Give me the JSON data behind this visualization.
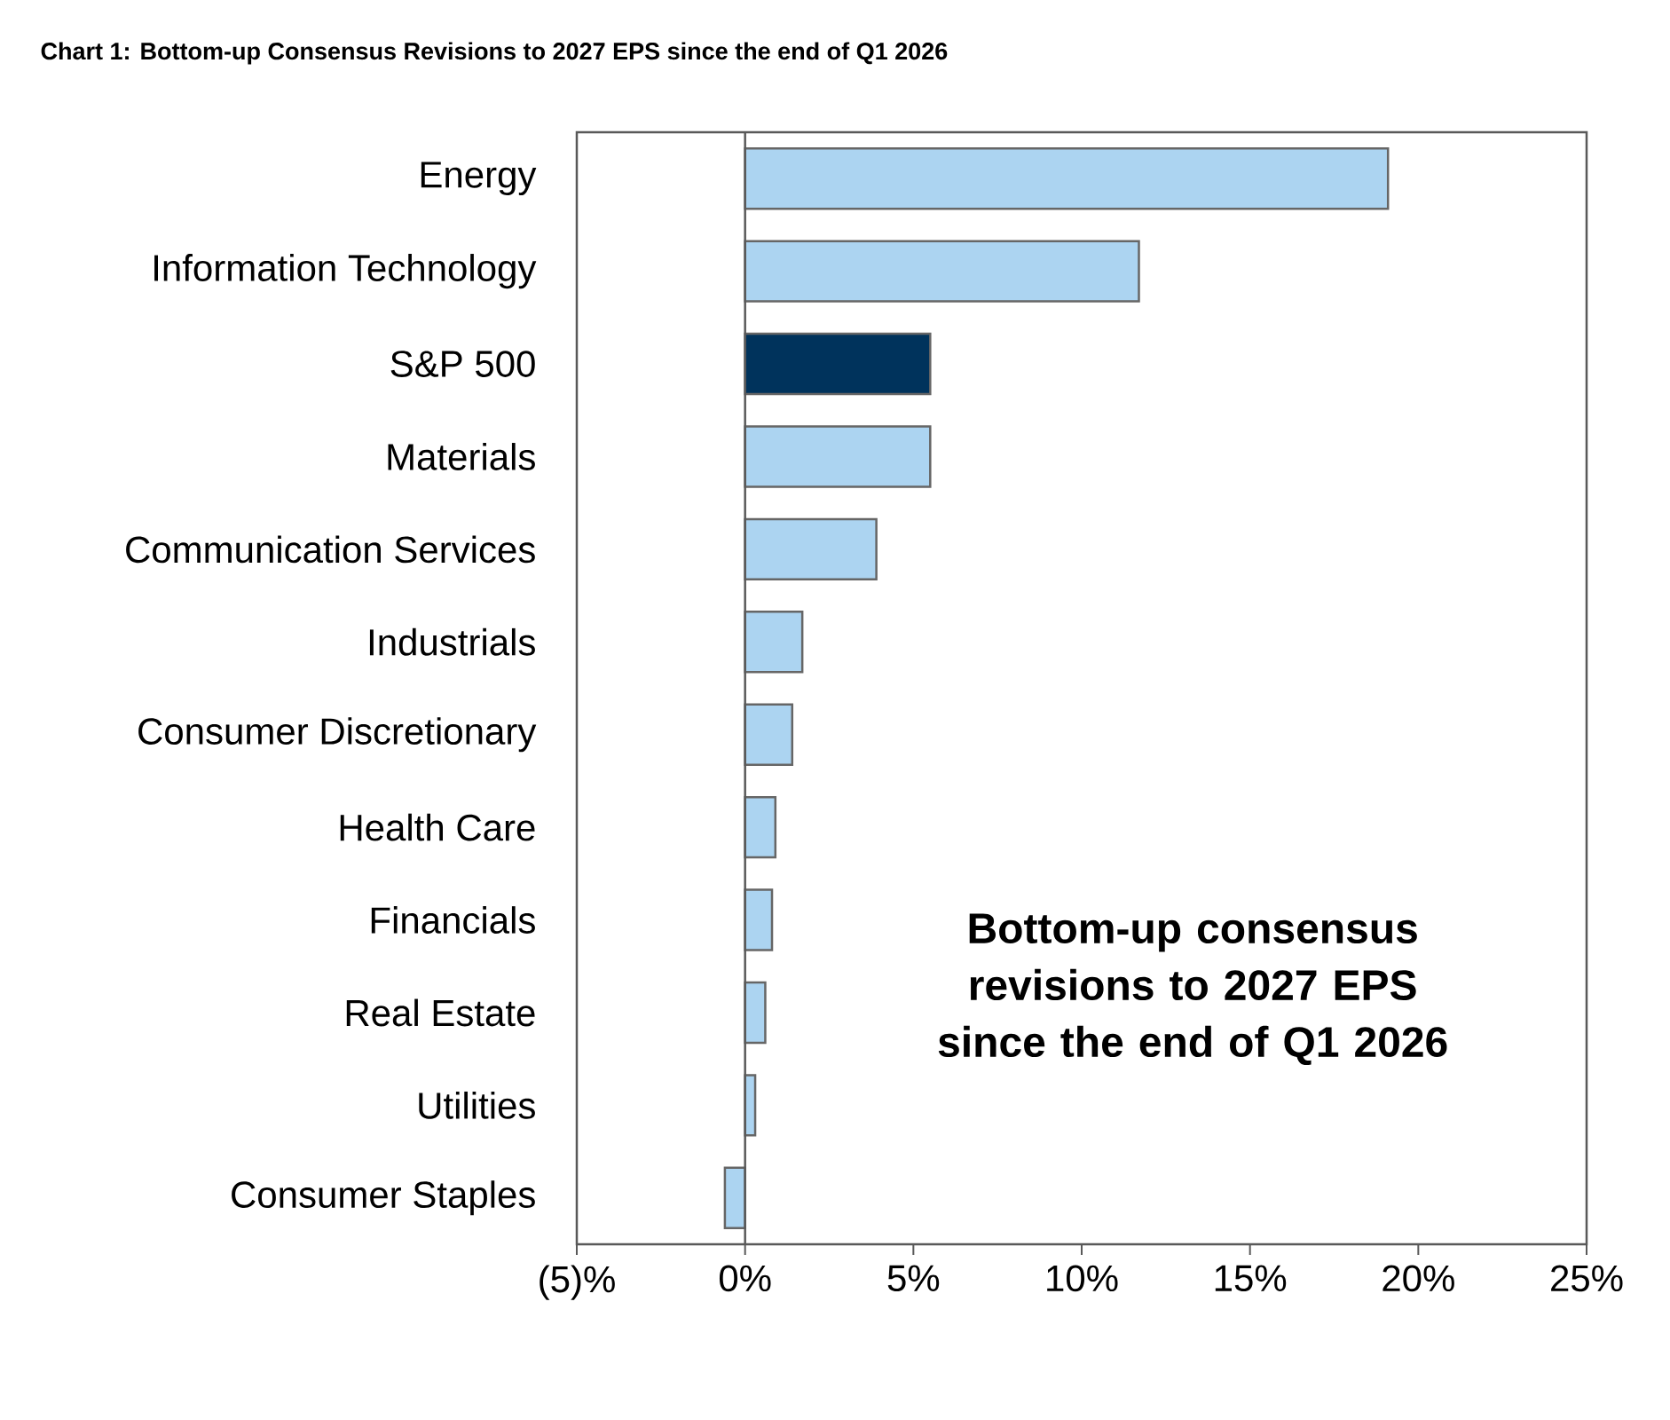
{
  "chart_data": {
    "type": "bar",
    "orientation": "horizontal",
    "title": "Chart 1: Bottom-up Consensus Revisions to 2027 EPS since the end of Q1 2026",
    "categories": [
      "Energy",
      "Information Technology",
      "S&P 500",
      "Materials",
      "Communication Services",
      "Industrials",
      "Consumer Discretionary",
      "Health Care",
      "Financials",
      "Real Estate",
      "Utilities",
      "Consumer Staples"
    ],
    "values": [
      19.1,
      11.7,
      5.5,
      5.5,
      3.9,
      1.7,
      1.4,
      0.9,
      0.8,
      0.6,
      0.3,
      -0.6
    ],
    "colors": [
      "#acd4f1",
      "#acd4f1",
      "#00335c",
      "#acd4f1",
      "#acd4f1",
      "#acd4f1",
      "#acd4f1",
      "#acd4f1",
      "#acd4f1",
      "#acd4f1",
      "#acd4f1",
      "#acd4f1"
    ],
    "xlim": [
      -5,
      25
    ],
    "xticks": [
      {
        "value": -5,
        "label": "(5)%"
      },
      {
        "value": 0,
        "label": "0%"
      },
      {
        "value": 5,
        "label": "5%"
      },
      {
        "value": 10,
        "label": "10%"
      },
      {
        "value": 15,
        "label": "15%"
      },
      {
        "value": 20,
        "label": "20%"
      },
      {
        "value": 25,
        "label": "25%"
      }
    ],
    "annotations": [
      "Bottom-up consensus revisions to 2027 EPS since the end of Q1 2026"
    ]
  }
}
